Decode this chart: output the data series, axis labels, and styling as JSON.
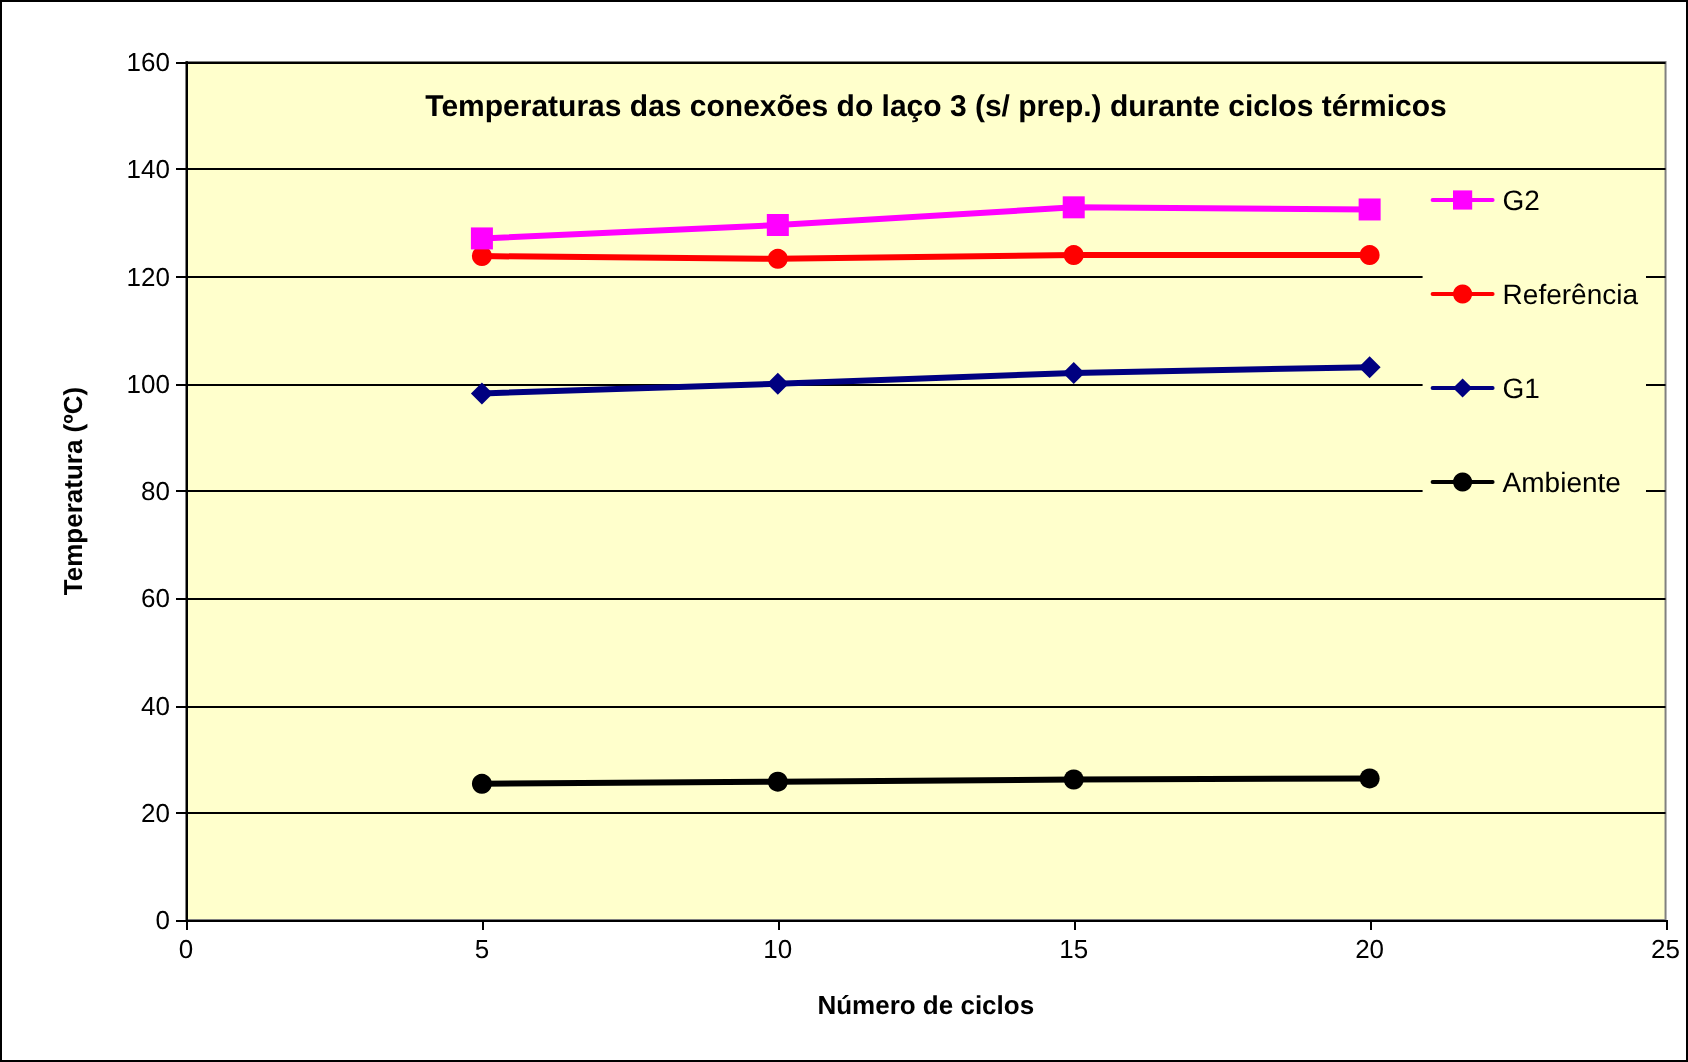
{
  "chart_data": {
    "type": "line",
    "title": "Temperaturas das conexões do laço 3 (s/ prep.) durante ciclos térmicos",
    "xlabel": "Número de ciclos",
    "ylabel": "Temperatura (ºC)",
    "x": [
      5,
      10,
      15,
      20
    ],
    "series": [
      {
        "name": "G2",
        "color": "#ff00ff",
        "marker": "square",
        "values": [
          127.1,
          129.6,
          132.9,
          132.5
        ]
      },
      {
        "name": "Referência",
        "color": "#ff0000",
        "marker": "circle",
        "values": [
          123.8,
          123.3,
          124,
          124
        ]
      },
      {
        "name": "G1",
        "color": "#000080",
        "marker": "diamond",
        "values": [
          98.2,
          100,
          102,
          103.1
        ]
      },
      {
        "name": "Ambiente",
        "color": "#000000",
        "marker": "circle",
        "values": [
          25.4,
          25.8,
          26.2,
          26.4
        ]
      }
    ],
    "xlim": [
      0,
      25
    ],
    "xticks": [
      0,
      5,
      10,
      15,
      20,
      25
    ],
    "ylim": [
      0,
      160
    ],
    "yticks": [
      0,
      20,
      40,
      60,
      80,
      100,
      120,
      140,
      160
    ],
    "grid": "y",
    "legend": "right",
    "line_style": "solid"
  }
}
